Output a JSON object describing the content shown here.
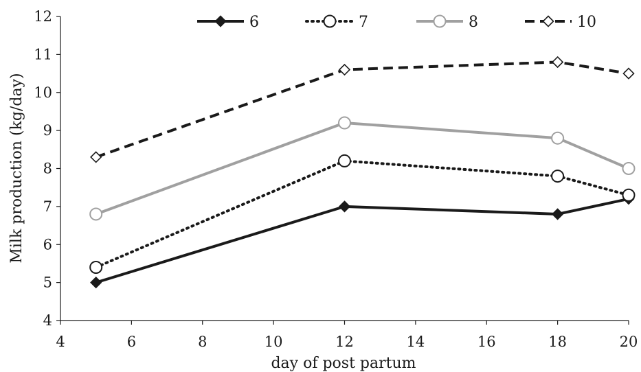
{
  "chart_data": {
    "type": "line",
    "title": "",
    "xlabel": "day of post partum",
    "ylabel": "Milk production (kg/day)",
    "xlim": [
      4,
      20
    ],
    "ylim": [
      4,
      12
    ],
    "xticks": [
      "4",
      "6",
      "8",
      "10",
      "12",
      "14",
      "16",
      "18",
      "20"
    ],
    "yticks": [
      "4",
      "5",
      "6",
      "7",
      "8",
      "9",
      "10",
      "11",
      "12"
    ],
    "x": [
      5,
      12,
      18,
      20
    ],
    "grid": false,
    "legend_position": "top",
    "series": [
      {
        "name": "6",
        "values": [
          5.0,
          7.0,
          6.8,
          7.2
        ],
        "color": "#1a1a1a",
        "line": "solid",
        "marker": "diamond-filled"
      },
      {
        "name": "7",
        "values": [
          5.4,
          8.2,
          7.8,
          7.3
        ],
        "color": "#1a1a1a",
        "line": "dotted",
        "marker": "circle-open"
      },
      {
        "name": "8",
        "values": [
          6.8,
          9.2,
          8.8,
          8.0
        ],
        "color": "#a0a0a0",
        "line": "solid",
        "marker": "circle-open"
      },
      {
        "name": "10",
        "values": [
          8.3,
          10.6,
          10.8,
          10.5
        ],
        "color": "#1a1a1a",
        "line": "dashed",
        "marker": "diamond-open"
      }
    ]
  }
}
